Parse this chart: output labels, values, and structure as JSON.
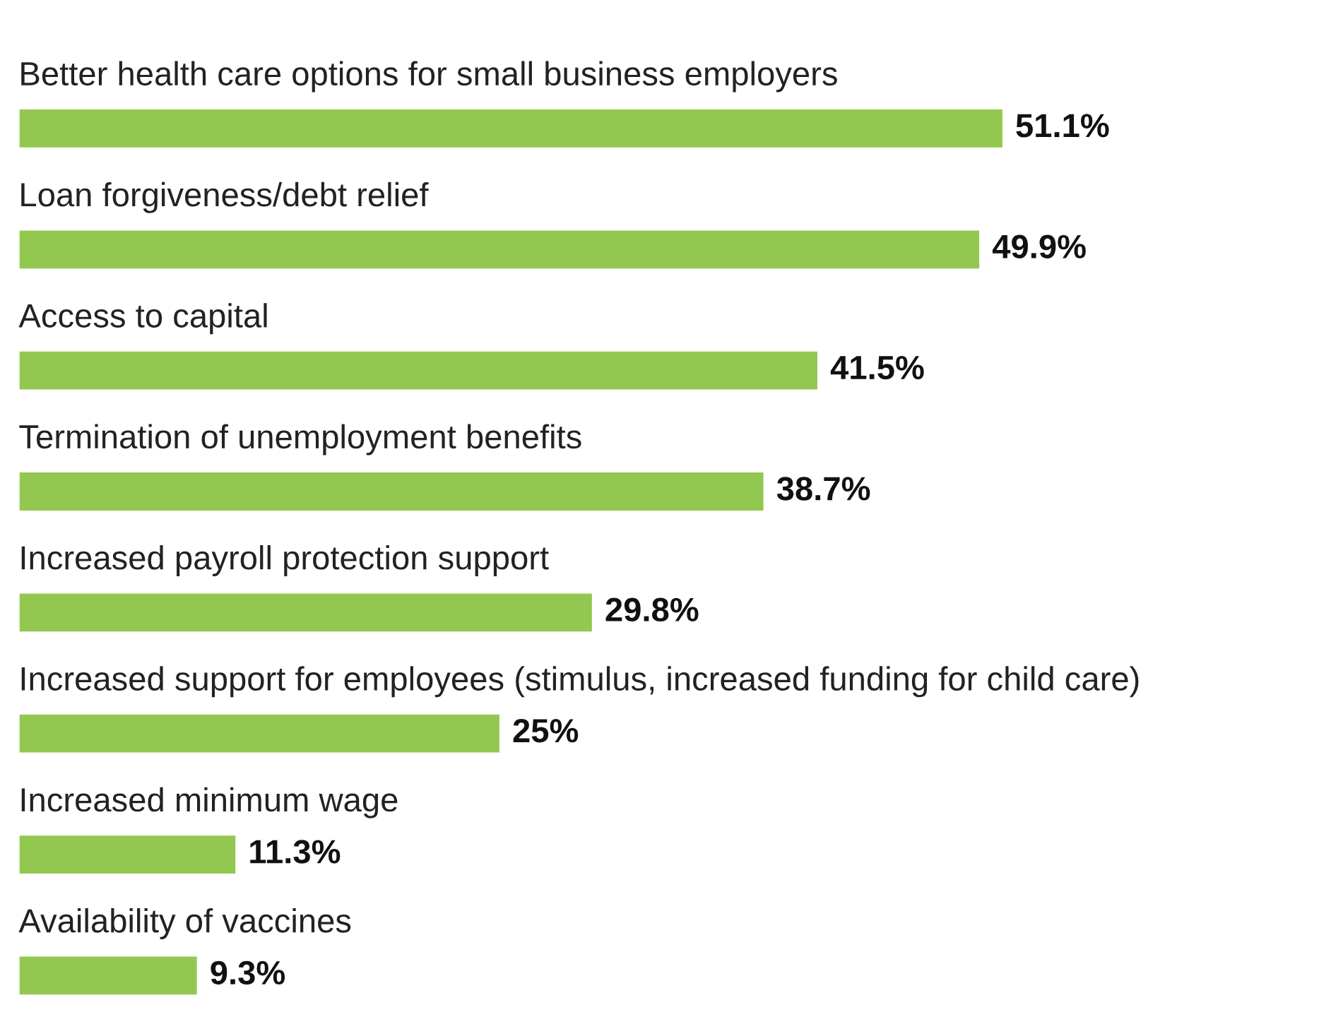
{
  "chart_data": {
    "type": "bar",
    "orientation": "horizontal",
    "data_labels": true,
    "color": "#92c84f",
    "categories": [
      "Better health care options for small business employers",
      "Loan forgiveness/debt relief",
      "Access to capital",
      "Termination of unemployment benefits",
      "Increased payroll protection support",
      "Increased support for employees (stimulus, increased funding for child care)",
      "Increased minimum wage",
      "Availability of vaccines"
    ],
    "values": [
      51.1,
      49.9,
      41.5,
      38.7,
      29.8,
      25,
      11.3,
      9.3
    ],
    "value_labels": [
      "51.1%",
      "49.9%",
      "41.5%",
      "38.7%",
      "29.8%",
      "25%",
      "11.3%",
      "9.3%"
    ]
  }
}
